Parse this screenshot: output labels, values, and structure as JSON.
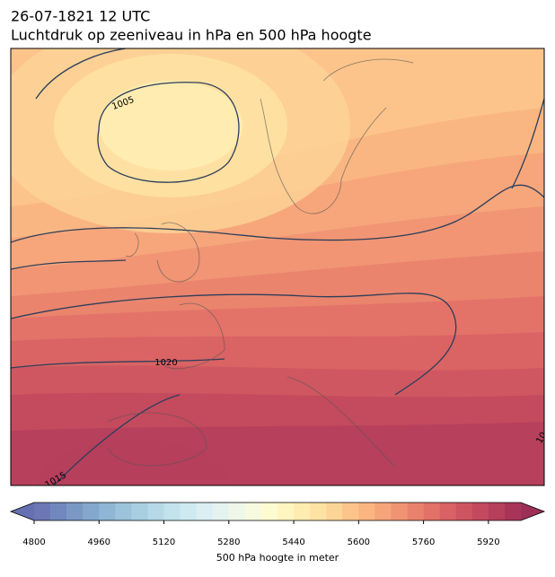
{
  "title": "26-07-1821 12 UTC",
  "subtitle": "Luchtdruk op zeeniveau in hPa en 500 hPa hoogte",
  "contour_labels": [
    "1005",
    "1020",
    "1015",
    "10"
  ],
  "colorbar": {
    "label": "500 hPa hoogte in meter",
    "lim": [
      4800,
      6000
    ],
    "ticks": [
      4800,
      4960,
      5120,
      5280,
      5440,
      5600,
      5760,
      5920
    ],
    "colors": [
      "#6b78b5",
      "#7088bd",
      "#7a98c4",
      "#84a8cc",
      "#8fb6d4",
      "#9cc3db",
      "#a8cfe1",
      "#b5d9e7",
      "#c2e2ec",
      "#cfe9f0",
      "#dbeff2",
      "#e5f3f0",
      "#eff7ea",
      "#f7fadf",
      "#fdfbd0",
      "#fff5c0",
      "#ffecb0",
      "#fee2a3",
      "#fdd497",
      "#fcc48b",
      "#fab581",
      "#f6a47a",
      "#f09373",
      "#e9826d",
      "#e27168",
      "#d86264",
      "#cd5561",
      "#c2495e",
      "#b63f5c",
      "#a83559"
    ],
    "extend_colors": [
      "#6470b0",
      "#9d2f57"
    ]
  }
}
